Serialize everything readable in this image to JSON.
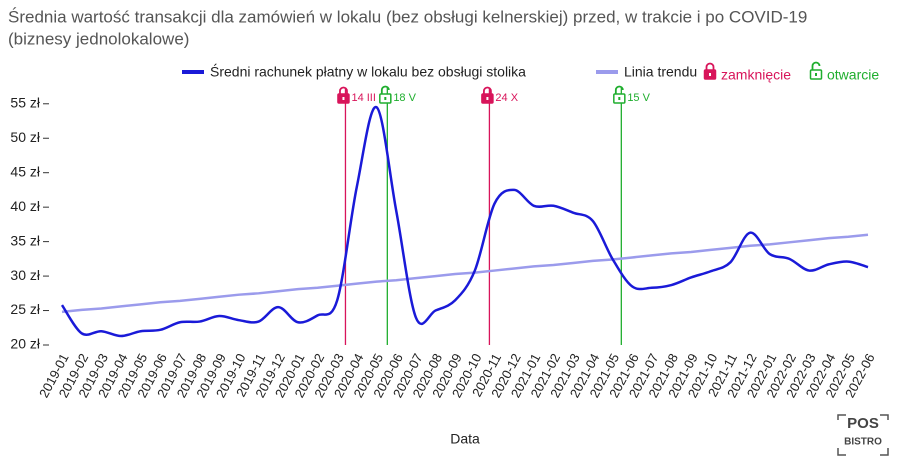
{
  "chart_data": {
    "type": "line",
    "title_lines": [
      "Średnia wartość transakcji dla zamówień w lokalu (bez obsługi kelnerskiej) przed, w trakcie i po COVID-19",
      "(biznesy jednolokalowe)"
    ],
    "xlabel": "Data",
    "categories": [
      "2019-01",
      "2019-02",
      "2019-03",
      "2019-04",
      "2019-05",
      "2019-06",
      "2019-07",
      "2019-08",
      "2019-09",
      "2019-10",
      "2019-11",
      "2019-12",
      "2020-01",
      "2020-02",
      "2020-03",
      "2020-04",
      "2020-05",
      "2020-06",
      "2020-07",
      "2020-08",
      "2020-09",
      "2020-10",
      "2020-11",
      "2020-12",
      "2021-01",
      "2021-02",
      "2021-03",
      "2021-04",
      "2021-05",
      "2021-06",
      "2021-07",
      "2021-08",
      "2021-09",
      "2021-10",
      "2021-11",
      "2021-12",
      "2022-01",
      "2022-02",
      "2022-03",
      "2022-04",
      "2022-05",
      "2022-06"
    ],
    "series": [
      {
        "name": "Średni rachunek płatny w lokalu bez obsługi stolika",
        "color": "#1a1ad8",
        "values": [
          25.8,
          21.7,
          22,
          21.3,
          22,
          22.2,
          23.3,
          23.4,
          24.2,
          23.6,
          23.4,
          25.5,
          23.3,
          24.3,
          26.5,
          43,
          54.5,
          39.5,
          24,
          25,
          26.5,
          30.8,
          40.5,
          42.5,
          40.2,
          40.2,
          39.2,
          38,
          32.5,
          28.5,
          28.3,
          28.7,
          29.8,
          30.7,
          32,
          36.3,
          33.2,
          32.5,
          30.8,
          31.7,
          32.1,
          31.3
        ]
      },
      {
        "name": "Linia trendu",
        "color": "#9b9bec",
        "values": [
          24.8,
          25.1,
          25.3,
          25.6,
          25.9,
          26.2,
          26.4,
          26.7,
          27.0,
          27.3,
          27.5,
          27.8,
          28.1,
          28.3,
          28.6,
          28.9,
          29.2,
          29.4,
          29.7,
          30.0,
          30.3,
          30.5,
          30.8,
          31.1,
          31.4,
          31.6,
          31.9,
          32.2,
          32.4,
          32.7,
          33.0,
          33.3,
          33.5,
          33.8,
          34.1,
          34.4,
          34.6,
          34.9,
          35.2,
          35.5,
          35.7,
          36.0
        ]
      }
    ],
    "ylim": [
      20,
      57
    ],
    "yticks": [
      {
        "value": 20,
        "label": "20 zł"
      },
      {
        "value": 25,
        "label": "25 zł"
      },
      {
        "value": 30,
        "label": "30 zł"
      },
      {
        "value": 35,
        "label": "35 zł"
      },
      {
        "value": 40,
        "label": "40 zł"
      },
      {
        "value": 45,
        "label": "45 zł"
      },
      {
        "value": 50,
        "label": "50 zł"
      },
      {
        "value": 55,
        "label": "55 zł"
      }
    ],
    "grid": false,
    "lock_legend": [
      {
        "label": "zamknięcie",
        "color": "#d8145a",
        "open": false
      },
      {
        "label": "otwarcie",
        "color": "#1fae2e",
        "open": true
      }
    ],
    "annotations": [
      {
        "date": "2020-03-14",
        "label": "14 III",
        "kind": 0
      },
      {
        "date": "2020-05-18",
        "label": "18 V",
        "kind": 1
      },
      {
        "date": "2020-10-24",
        "label": "24 X",
        "kind": 0
      },
      {
        "date": "2021-05-15",
        "label": "15 V",
        "kind": 1
      }
    ],
    "logo": [
      "POS",
      "BISTRO"
    ]
  }
}
